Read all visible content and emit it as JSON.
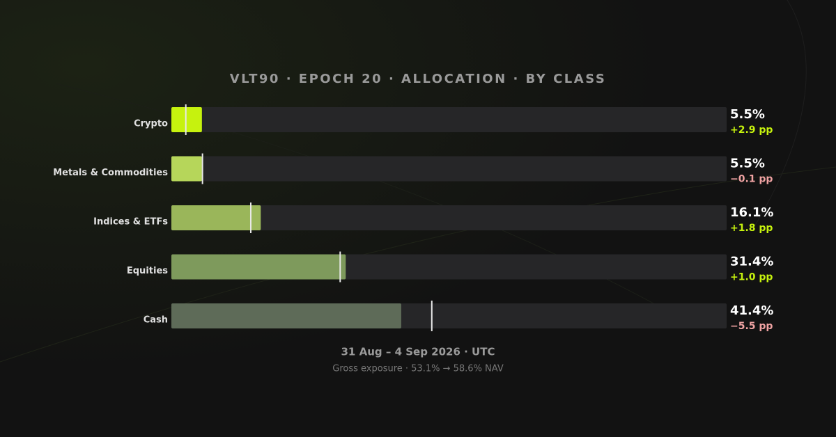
{
  "chart_data": {
    "type": "bar",
    "orientation": "horizontal",
    "title": "VLT90 · EPOCH 20 · ALLOCATION · BY CLASS",
    "categories": [
      "Crypto",
      "Metals & Commodities",
      "Indices & ETFs",
      "Equities",
      "Cash"
    ],
    "values": [
      5.5,
      5.5,
      16.1,
      31.4,
      41.4
    ],
    "value_labels": [
      "5.5%",
      "5.5%",
      "16.1%",
      "31.4%",
      "41.4%"
    ],
    "colors": [
      "#c6f20e",
      "#b6d65a",
      "#9ab65a",
      "#7e9a5c",
      "#5e6b58"
    ],
    "previous_values": [
      2.6,
      5.6,
      14.3,
      30.4,
      46.9
    ],
    "changes": [
      {
        "value": 2.9,
        "label": "+2.9 pp"
      },
      {
        "value": -0.1,
        "label": "−0.1 pp"
      },
      {
        "value": 1.8,
        "label": "+1.8 pp"
      },
      {
        "value": 1.0,
        "label": "+1.0 pp"
      },
      {
        "value": -5.5,
        "label": "−5.5 pp"
      }
    ],
    "positive_color": "#c6f20e",
    "negative_color": "#f0a3a3",
    "xlim": [
      0,
      100
    ],
    "subtitle": "31 Aug – 4 Sep 2026 · UTC",
    "footnote": "Gross exposure · 53.1% → 58.6% NAV"
  }
}
